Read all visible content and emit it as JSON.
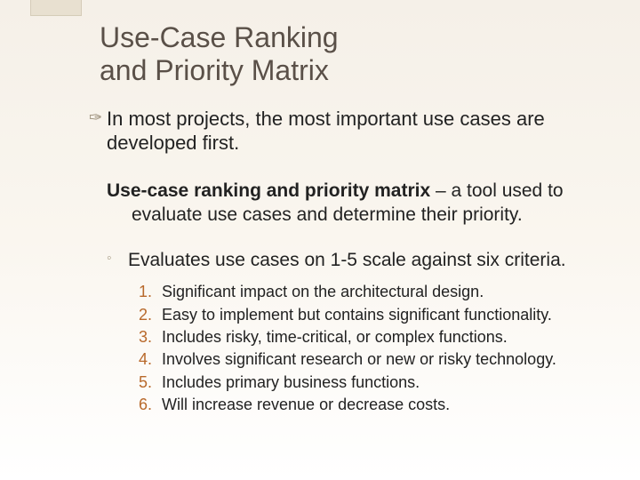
{
  "colors": {
    "title": "#5a5048",
    "bullet": "#9b8f7a",
    "subbullet": "#a89d87",
    "number": "#b8692b",
    "text": "#222222",
    "bg_top": "#f5f0e8",
    "bg_bottom": "#ffffff",
    "tab_fill": "#e8e0d0",
    "tab_border": "#d5ccb8"
  },
  "title_line1": "Use-Case Ranking",
  "title_line2": "and Priority Matrix",
  "main_bullet": "In most projects, the most important use cases are developed first.",
  "definition": {
    "term": "Use-case ranking and priority matrix",
    "rest": " – a tool used to",
    "cont": "evaluate use cases and determine their priority."
  },
  "sub_point": "Evaluates use cases on 1-5 scale against six criteria.",
  "criteria": [
    "Significant impact on the architectural design.",
    "Easy to implement but contains significant functionality.",
    "Includes risky, time-critical, or complex functions.",
    "Involves significant research or new or risky technology.",
    "Includes primary business functions.",
    "Will increase revenue or decrease costs."
  ],
  "typography": {
    "title_fontsize": 32,
    "body_fontsize": 22,
    "def_fontsize": 21,
    "criteria_fontsize": 18
  }
}
